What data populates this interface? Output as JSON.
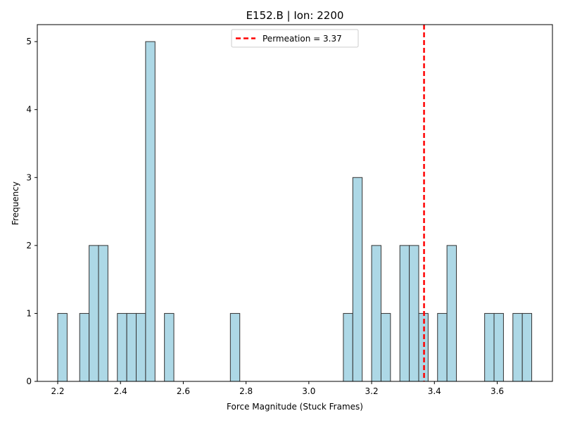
{
  "chart_data": {
    "type": "bar",
    "title": "E152.B | Ion: 2200",
    "xlabel": "Force Magnitude (Stuck Frames)",
    "ylabel": "Frequency",
    "xlim": [
      2.135,
      3.776
    ],
    "ylim": [
      0,
      5.25
    ],
    "bin_width": 0.03,
    "xticks": [
      "2.2",
      "2.4",
      "2.6",
      "2.8",
      "3.0",
      "3.2",
      "3.4",
      "3.6"
    ],
    "yticks": [
      "0",
      "1",
      "2",
      "3",
      "4",
      "5"
    ],
    "bins": [
      {
        "x": 2.2,
        "count": 1
      },
      {
        "x": 2.27,
        "count": 1
      },
      {
        "x": 2.3,
        "count": 2
      },
      {
        "x": 2.33,
        "count": 2
      },
      {
        "x": 2.39,
        "count": 1
      },
      {
        "x": 2.42,
        "count": 1
      },
      {
        "x": 2.45,
        "count": 1
      },
      {
        "x": 2.48,
        "count": 5
      },
      {
        "x": 2.54,
        "count": 1
      },
      {
        "x": 2.75,
        "count": 1
      },
      {
        "x": 3.11,
        "count": 1
      },
      {
        "x": 3.14,
        "count": 3
      },
      {
        "x": 3.2,
        "count": 2
      },
      {
        "x": 3.23,
        "count": 1
      },
      {
        "x": 3.29,
        "count": 2
      },
      {
        "x": 3.32,
        "count": 2
      },
      {
        "x": 3.35,
        "count": 1
      },
      {
        "x": 3.41,
        "count": 1
      },
      {
        "x": 3.44,
        "count": 2
      },
      {
        "x": 3.56,
        "count": 1
      },
      {
        "x": 3.59,
        "count": 1
      },
      {
        "x": 3.65,
        "count": 1
      },
      {
        "x": 3.68,
        "count": 1
      }
    ],
    "reference_line": {
      "x": 3.367,
      "label": "Permeation = 3.37",
      "color": "#ff0000"
    },
    "legend_position": "top-center",
    "bar_color": "#add8e6",
    "bar_edge_color": "#333333",
    "grid": false
  }
}
